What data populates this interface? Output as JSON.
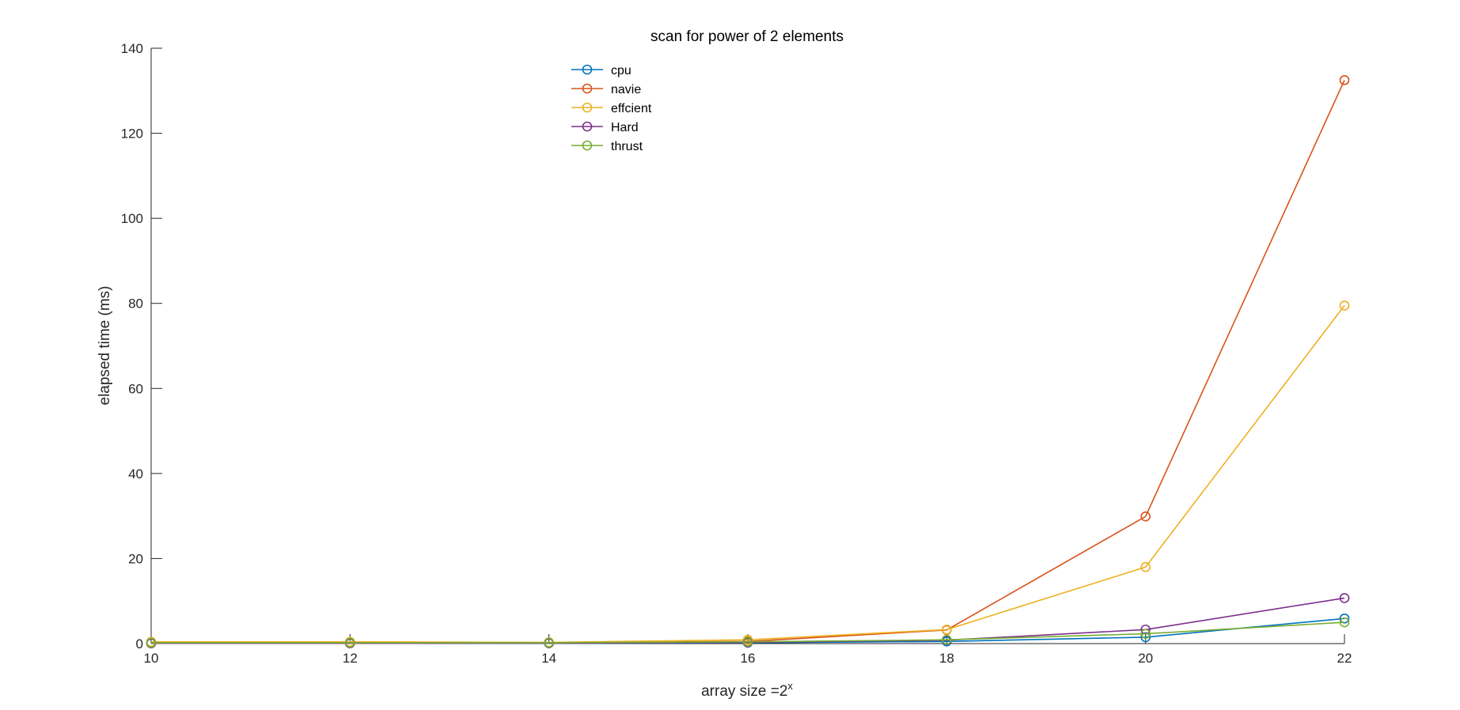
{
  "chart_data": {
    "type": "line",
    "title": "scan for power of 2 elements",
    "xlabel_main": "array size =2",
    "xlabel_sup": "x",
    "ylabel": "elapsed time (ms)",
    "xlim": [
      10,
      22
    ],
    "ylim": [
      0,
      140
    ],
    "xticks": [
      10,
      12,
      14,
      16,
      18,
      20,
      22
    ],
    "yticks": [
      0,
      20,
      40,
      60,
      80,
      100,
      120,
      140
    ],
    "x": [
      10,
      12,
      14,
      16,
      18,
      20,
      22
    ],
    "grid": false,
    "legend_position": "top-center",
    "marker": "circle",
    "series": [
      {
        "name": "cpu",
        "color": "#0072BD",
        "values": [
          0.05,
          0.05,
          0.08,
          0.2,
          0.5,
          1.5,
          5.9
        ]
      },
      {
        "name": "navie",
        "color": "#D95319",
        "values": [
          0.1,
          0.1,
          0.2,
          0.5,
          3.2,
          29.9,
          132.5
        ]
      },
      {
        "name": "effcient",
        "color": "#EDB120",
        "values": [
          0.4,
          0.4,
          0.3,
          0.9,
          3.3,
          18.0,
          79.5
        ]
      },
      {
        "name": "Hard",
        "color": "#7E2F8E",
        "values": [
          0.1,
          0.1,
          0.1,
          0.3,
          0.8,
          3.3,
          10.7
        ]
      },
      {
        "name": "thrust",
        "color": "#77AC30",
        "values": [
          0.2,
          0.2,
          0.2,
          0.4,
          0.9,
          2.3,
          5.0
        ]
      }
    ]
  }
}
